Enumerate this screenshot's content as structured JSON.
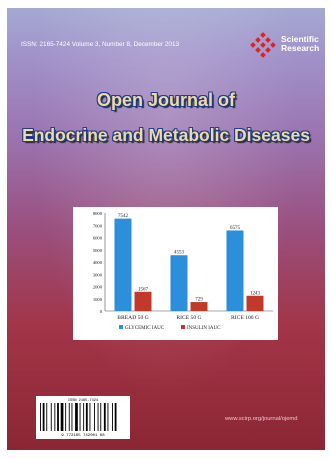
{
  "header": {
    "issn_line": "ISSN: 2165-7424  Volume 3, Number 8, December 2013",
    "publisher_line1": "Scientific",
    "publisher_line2": "Research"
  },
  "title": {
    "line1": "Open Journal of",
    "line2": "Endocrine and Metabolic Diseases"
  },
  "chart_data": {
    "type": "bar",
    "categories": [
      "BREAD 50 G",
      "RICE 50 G",
      "RICE 100 G"
    ],
    "series": [
      {
        "name": "GLYCEMIC IAUC",
        "values": [
          7542,
          4553,
          6575
        ],
        "data_labels": [
          "7542",
          "4553",
          "6575"
        ],
        "color": "#2b8fdc"
      },
      {
        "name": "INSULIN IAUC",
        "values": [
          1567,
          729,
          1243
        ],
        "data_labels": [
          "1567",
          "729",
          "1243"
        ],
        "color": "#c0392b"
      }
    ],
    "yticks": [
      "8000",
      "7000",
      "6000",
      "5000",
      "4000",
      "3000",
      "2000",
      "1000",
      "0"
    ],
    "ylim": [
      0,
      8000
    ],
    "legend_position": "bottom",
    "grid": false
  },
  "footer": {
    "barcode_top": "ISSN 2165-7424",
    "barcode_digits": "9 772165 742001   08",
    "website": "www.scirp.org/journal/ojemd"
  }
}
